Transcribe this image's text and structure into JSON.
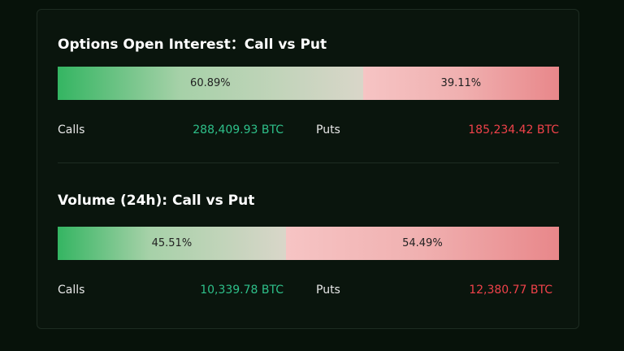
{
  "sections": [
    {
      "title": "Options Open Interest：Call vs Put",
      "calls": {
        "value": 60.89,
        "label": "60.89%"
      },
      "puts": {
        "value": 39.11,
        "label": "39.11%"
      },
      "calls_label": "Calls",
      "calls_amount": "288,409.93 BTC",
      "puts_label": "Puts",
      "puts_amount": "185,234.42 BTC"
    },
    {
      "title": "Volume (24h): Call vs Put",
      "calls": {
        "value": 45.51,
        "label": "45.51%"
      },
      "puts": {
        "value": 54.49,
        "label": "54.49%"
      },
      "calls_label": "Calls",
      "calls_amount": "10,339.78 BTC",
      "puts_label": "Puts",
      "puts_amount": "12,380.77 BTC"
    }
  ]
}
